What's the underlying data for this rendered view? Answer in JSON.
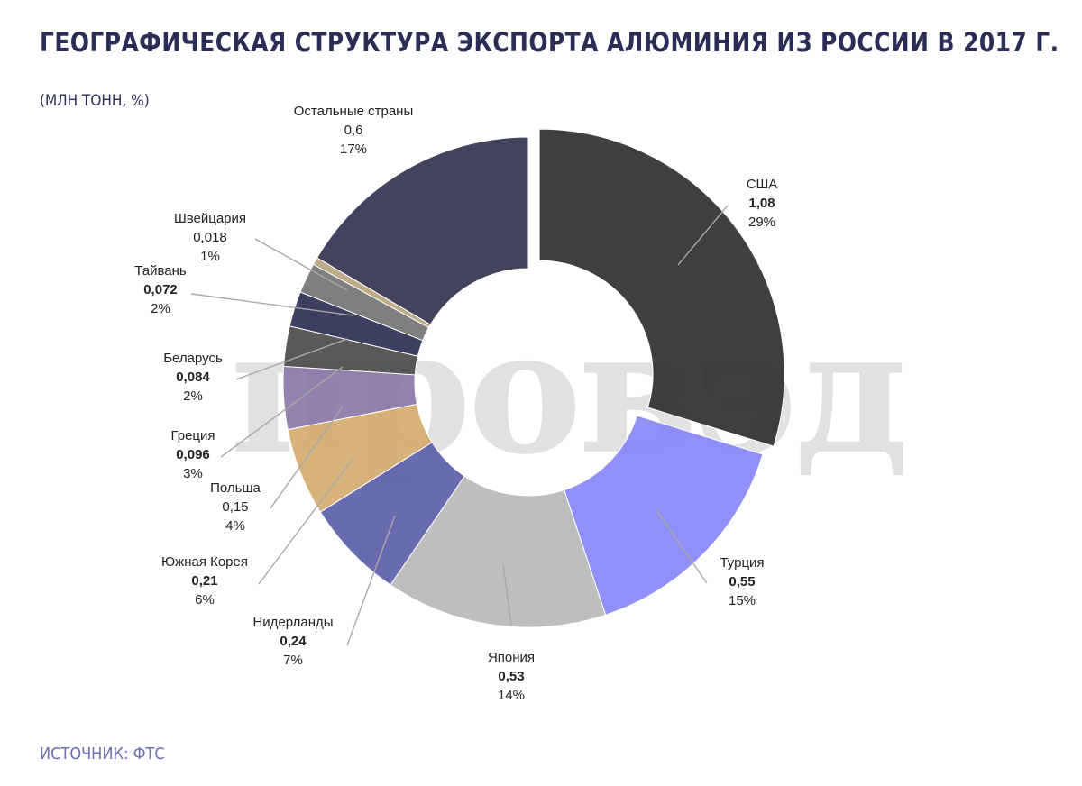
{
  "title": "ГЕОГРАФИЧЕСКАЯ СТРУКТУРА ЭКСПОРТА АЛЮМИНИЯ ИЗ РОССИИ В 2017 Г.",
  "subtitle": "(МЛН ТОНН, %)",
  "source": "ИСТОЧНИК: ФТС",
  "watermark": "провэд",
  "colors": {
    "title": "#2a2d55",
    "source": "#6a6fb5"
  },
  "chart_data": {
    "type": "pie",
    "variant": "donut",
    "title": "ГЕОГРАФИЧЕСКАЯ СТРУКТУРА ЭКСПОРТА АЛЮМИНИЯ ИЗ РОССИИ В 2017 Г.",
    "unit": "(МЛН ТОНН, %)",
    "slices": [
      {
        "name": "США",
        "value": "1,08",
        "percent": "29%",
        "v": 1.08,
        "color": "#2f2f2f",
        "exploded": true
      },
      {
        "name": "Турция",
        "value": "0,55",
        "percent": "15%",
        "v": 0.55,
        "color": "#8787f7"
      },
      {
        "name": "Япония",
        "value": "0,53",
        "percent": "14%",
        "v": 0.53,
        "color": "#b9b9b9"
      },
      {
        "name": "Нидерланды",
        "value": "0,24",
        "percent": "7%",
        "v": 0.24,
        "color": "#5c5eaa"
      },
      {
        "name": "Южная Корея",
        "value": "0,21",
        "percent": "6%",
        "v": 0.21,
        "color": "#d5ab70"
      },
      {
        "name": "Польша",
        "value": "0,15",
        "percent": "4%",
        "v": 0.15,
        "color": "#8a77a6"
      },
      {
        "name": "Греция",
        "value": "0,096",
        "percent": "3%",
        "v": 0.096,
        "color": "#4b4b4b"
      },
      {
        "name": "Беларусь",
        "value": "0,084",
        "percent": "2%",
        "v": 0.084,
        "color": "#2d2f52"
      },
      {
        "name": "Тайвань",
        "value": "0,072",
        "percent": "2%",
        "v": 0.072,
        "color": "#747474"
      },
      {
        "name": "Швейцария",
        "value": "0,018",
        "percent": "1%",
        "v": 0.018,
        "color": "#b7a57d"
      },
      {
        "name": "Остальные страны",
        "value": "0,6",
        "percent": "17%",
        "v": 0.6,
        "color": "#33334f"
      }
    ]
  }
}
